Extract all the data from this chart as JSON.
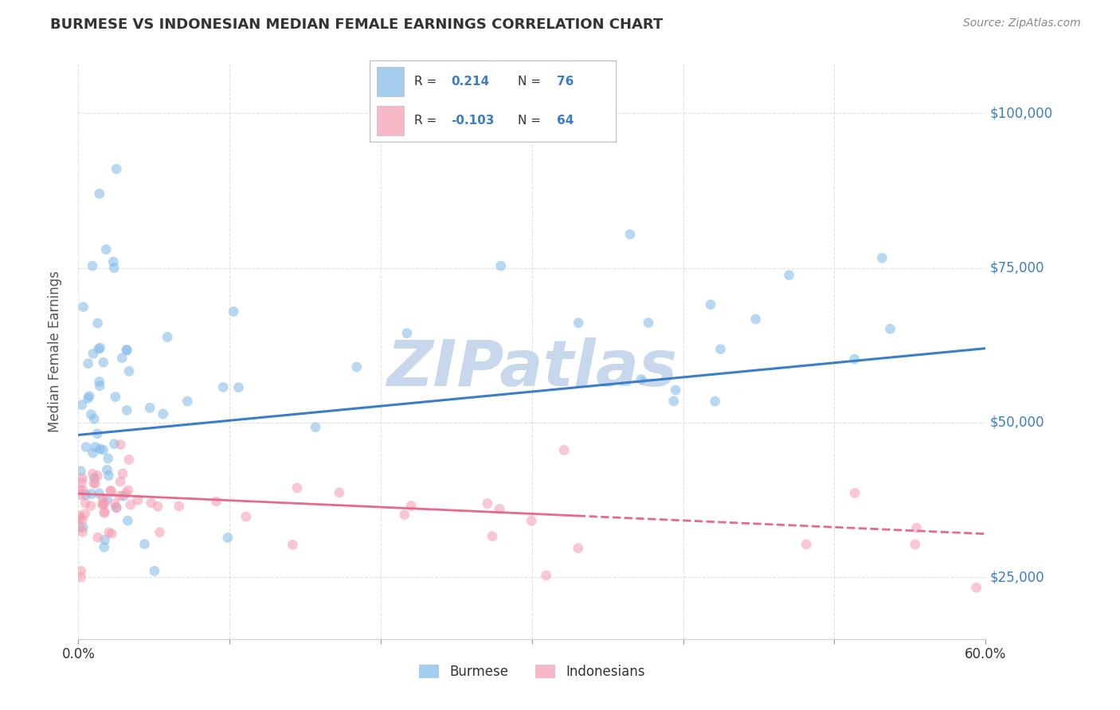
{
  "title": "BURMESE VS INDONESIAN MEDIAN FEMALE EARNINGS CORRELATION CHART",
  "source": "Source: ZipAtlas.com",
  "ylabel": "Median Female Earnings",
  "yticks": [
    25000,
    50000,
    75000,
    100000
  ],
  "ytick_labels": [
    "$25,000",
    "$50,000",
    "$75,000",
    "$100,000"
  ],
  "watermark": "ZIPatlas",
  "bg_color": "#FFFFFF",
  "grid_color": "#DDDDDD",
  "scatter_alpha": 0.55,
  "scatter_size": 85,
  "blue_color": "#7EB8E8",
  "pink_color": "#F49AB0",
  "blue_line_color": "#3A7DC9",
  "pink_line_color": "#E8698A",
  "title_color": "#333333",
  "axis_label_color": "#555555",
  "right_ytick_color": "#3A7DC9",
  "watermark_color": "#C8D8EC",
  "xlim": [
    0.0,
    0.6
  ],
  "ylim": [
    15000,
    108000
  ],
  "blue_line_y0": 48000,
  "blue_line_y1": 62000,
  "pink_line_y0": 38500,
  "pink_line_y1": 32000,
  "pink_dashed_split": 0.33
}
